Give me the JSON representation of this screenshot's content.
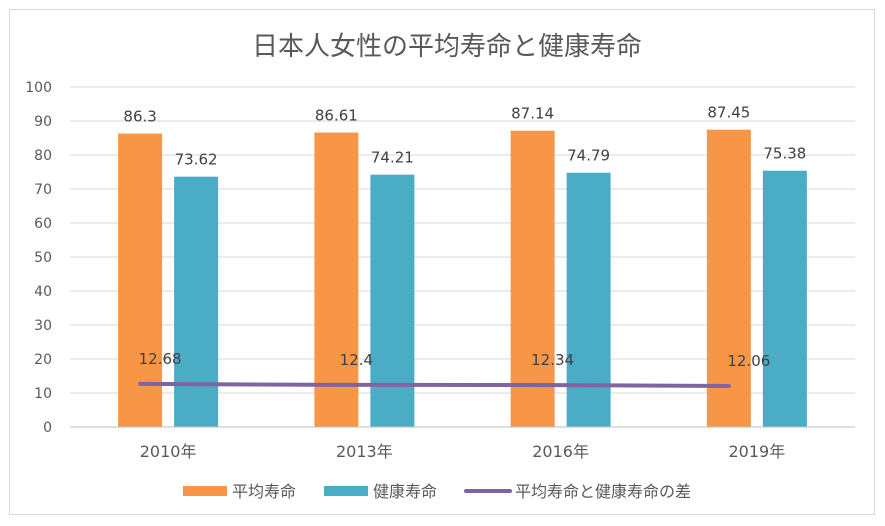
{
  "chart_data": {
    "type": "bar",
    "title": "日本人女性の平均寿命と健康寿命",
    "categories": [
      "2010年",
      "2013年",
      "2016年",
      "2019年"
    ],
    "ylim": [
      0,
      100
    ],
    "yticks": [
      0,
      10,
      20,
      30,
      40,
      50,
      60,
      70,
      80,
      90,
      100
    ],
    "grid": true,
    "legend_position": "bottom",
    "series": [
      {
        "name": "平均寿命",
        "kind": "bar",
        "color": "#F79646",
        "values": [
          86.3,
          86.61,
          87.14,
          87.45
        ],
        "labels": [
          "86.3",
          "86.61",
          "87.14",
          "87.45"
        ]
      },
      {
        "name": "健康寿命",
        "kind": "bar",
        "color": "#4BACC6",
        "values": [
          73.62,
          74.21,
          74.79,
          75.38
        ],
        "labels": [
          "73.62",
          "74.21",
          "74.79",
          "75.38"
        ]
      },
      {
        "name": "平均寿命と健康寿命の差",
        "kind": "line",
        "color": "#8064A2",
        "values": [
          12.68,
          12.4,
          12.34,
          12.06
        ],
        "labels": [
          "12.68",
          "12.4",
          "12.34",
          "12.06"
        ]
      }
    ]
  }
}
